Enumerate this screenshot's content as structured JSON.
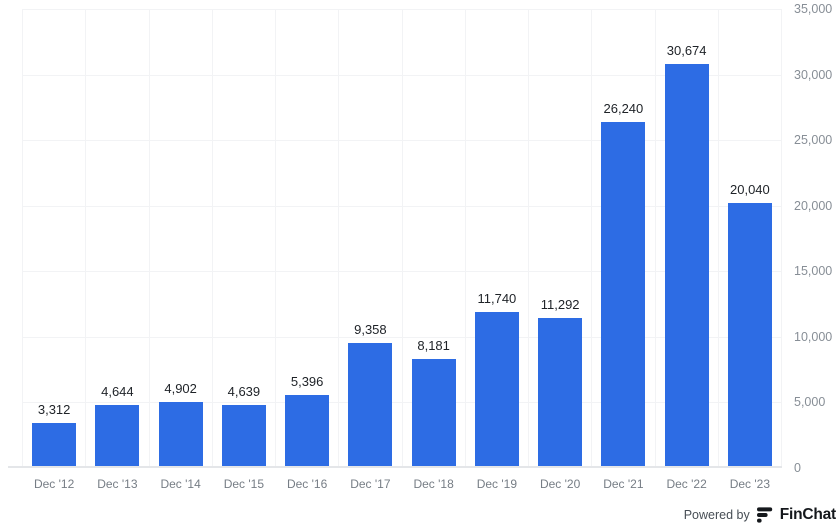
{
  "chart_data": {
    "type": "bar",
    "categories": [
      "Dec '12",
      "Dec '13",
      "Dec '14",
      "Dec '15",
      "Dec '16",
      "Dec '17",
      "Dec '18",
      "Dec '19",
      "Dec '20",
      "Dec '21",
      "Dec '22",
      "Dec '23"
    ],
    "values": [
      3312,
      4644,
      4902,
      4639,
      5396,
      9358,
      8181,
      11740,
      11292,
      26240,
      30674,
      20040
    ],
    "value_labels": [
      "3,312",
      "4,644",
      "4,902",
      "4,639",
      "5,396",
      "9,358",
      "8,181",
      "11,740",
      "11,292",
      "26,240",
      "30,674",
      "20,040"
    ],
    "title": "",
    "xlabel": "",
    "ylabel": "",
    "ylim": [
      0,
      35000
    ],
    "ytick_interval": 5000,
    "ytick_labels": [
      "0",
      "5,000",
      "10,000",
      "15,000",
      "20,000",
      "25,000",
      "30,000",
      "35,000"
    ],
    "yaxis_side": "right",
    "grid": true,
    "legend": false
  },
  "colors": {
    "bar": "#2d6ce4",
    "value_label": "#1e2227",
    "grid": "#f2f3f5",
    "baseline": "#e4e6e9",
    "x_label": "#767d85",
    "y_label": "#878e96",
    "brand_dark": "#15181c",
    "powered_text": "#474e55"
  },
  "footer": {
    "powered_by": "Powered by",
    "brand": "FinChat"
  }
}
